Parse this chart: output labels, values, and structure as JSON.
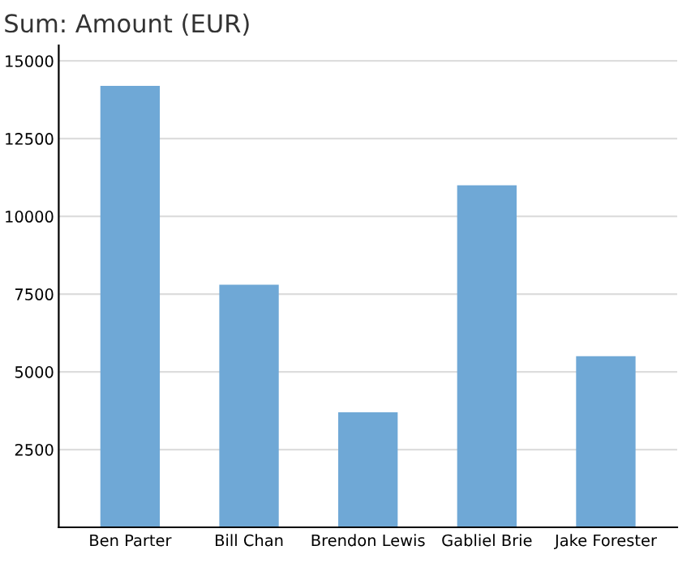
{
  "chart_data": {
    "type": "bar",
    "title": "Sum: Amount (EUR)",
    "categories": [
      "Ben Parter",
      "Bill Chan",
      "Brendon Lewis",
      "Gabliel Brie",
      "Jake Forester"
    ],
    "values": [
      14200,
      7800,
      3700,
      11000,
      5500
    ],
    "color": "#6fa8d6",
    "ylim": [
      0,
      15500
    ],
    "yticks": [
      2500,
      5000,
      7500,
      10000,
      12500,
      15000
    ],
    "grid": "y"
  }
}
